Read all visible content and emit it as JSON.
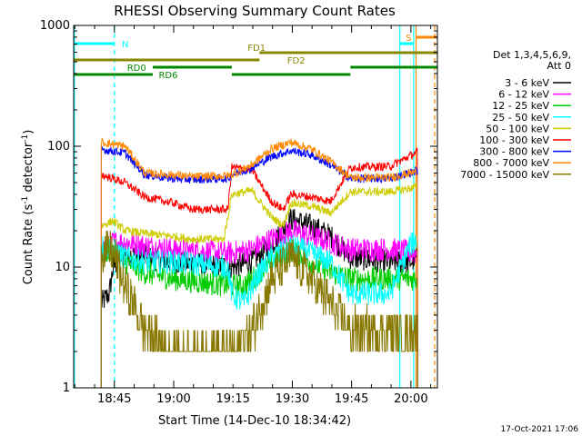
{
  "chart_data": {
    "type": "line",
    "title": "RHESSI Observing Summary Count Rates",
    "xlabel": "Start Time (14-Dec-10 18:34:42)",
    "ylabel": "Count Rate (s⁻¹ detector⁻¹)",
    "ylabel_main": "Count Rate (s",
    "ylabel_sup1": "-1",
    "ylabel_mid": " detector",
    "ylabel_sup2": "-1",
    "ylabel_end": ")",
    "yscale": "log",
    "ylim": [
      1,
      1000
    ],
    "xlim": [
      0,
      92
    ],
    "xticks": [
      {
        "t": 10.3,
        "label": "18:45"
      },
      {
        "t": 25.3,
        "label": "19:00"
      },
      {
        "t": 40.3,
        "label": "19:15"
      },
      {
        "t": 55.3,
        "label": "19:30"
      },
      {
        "t": 70.3,
        "label": "19:45"
      },
      {
        "t": 85.3,
        "label": "20:00"
      }
    ],
    "yticks": [
      {
        "v": 1,
        "label": "1"
      },
      {
        "v": 10,
        "label": "10"
      },
      {
        "v": 100,
        "label": "100"
      },
      {
        "v": 1000,
        "label": "1000"
      }
    ],
    "legend_header": [
      "Det 1,3,4,5,6,9,",
      "Att 0"
    ],
    "series": [
      {
        "name": "3 - 6 keV",
        "color": "#000000",
        "base": 11,
        "pts": [
          [
            7,
            5
          ],
          [
            9,
            6
          ],
          [
            10,
            10
          ],
          [
            13,
            13
          ],
          [
            18,
            12
          ],
          [
            25,
            11
          ],
          [
            40,
            10
          ],
          [
            45,
            11
          ],
          [
            50,
            15
          ],
          [
            55,
            25
          ],
          [
            60,
            22
          ],
          [
            65,
            18
          ],
          [
            70,
            12
          ],
          [
            80,
            11
          ],
          [
            85,
            11
          ],
          [
            87,
            12
          ]
        ]
      },
      {
        "name": "6 - 12 keV",
        "color": "#ff00ff",
        "base": 14,
        "pts": [
          [
            7,
            14
          ],
          [
            10,
            16
          ],
          [
            13,
            16
          ],
          [
            18,
            15
          ],
          [
            25,
            14
          ],
          [
            40,
            13
          ],
          [
            45,
            14
          ],
          [
            50,
            17
          ],
          [
            55,
            20
          ],
          [
            60,
            18
          ],
          [
            65,
            16
          ],
          [
            70,
            14
          ],
          [
            80,
            14
          ],
          [
            87,
            13
          ]
        ]
      },
      {
        "name": "12 - 25 keV",
        "color": "#00cc00",
        "base": 10,
        "pts": [
          [
            7,
            13
          ],
          [
            10,
            14
          ],
          [
            13,
            11
          ],
          [
            18,
            9
          ],
          [
            25,
            8
          ],
          [
            40,
            7
          ],
          [
            43,
            7
          ],
          [
            47,
            9
          ],
          [
            50,
            11
          ],
          [
            55,
            14
          ],
          [
            60,
            11
          ],
          [
            65,
            9
          ],
          [
            70,
            8
          ],
          [
            80,
            8
          ],
          [
            87,
            8
          ]
        ]
      },
      {
        "name": "25 - 50 keV",
        "color": "#00ffff",
        "base": 12,
        "pts": [
          [
            7,
            15
          ],
          [
            10,
            14
          ],
          [
            13,
            12
          ],
          [
            18,
            11
          ],
          [
            25,
            11
          ],
          [
            39,
            10
          ],
          [
            40,
            6
          ],
          [
            43,
            5
          ],
          [
            47,
            9
          ],
          [
            50,
            12
          ],
          [
            55,
            15
          ],
          [
            60,
            13
          ],
          [
            65,
            11
          ],
          [
            70,
            6
          ],
          [
            80,
            6
          ],
          [
            85,
            15
          ],
          [
            87,
            17
          ]
        ]
      },
      {
        "name": "50 - 100 keV",
        "color": "#cccc00",
        "base": 45,
        "pts": [
          [
            7,
            22
          ],
          [
            10,
            24
          ],
          [
            13,
            20
          ],
          [
            18,
            19
          ],
          [
            25,
            18
          ],
          [
            30,
            17
          ],
          [
            38,
            17
          ],
          [
            40,
            40
          ],
          [
            45,
            43
          ],
          [
            50,
            26
          ],
          [
            53,
            22
          ],
          [
            55,
            34
          ],
          [
            60,
            32
          ],
          [
            65,
            28
          ],
          [
            70,
            42
          ],
          [
            80,
            42
          ],
          [
            87,
            46
          ]
        ]
      },
      {
        "name": "100 - 300 keV",
        "color": "#ff0000",
        "base": 55,
        "pts": [
          [
            7,
            58
          ],
          [
            13,
            50
          ],
          [
            18,
            38
          ],
          [
            25,
            34
          ],
          [
            30,
            30
          ],
          [
            39,
            30
          ],
          [
            40,
            67
          ],
          [
            45,
            64
          ],
          [
            50,
            35
          ],
          [
            53,
            30
          ],
          [
            55,
            40
          ],
          [
            60,
            38
          ],
          [
            65,
            35
          ],
          [
            70,
            67
          ],
          [
            80,
            68
          ],
          [
            87,
            90
          ]
        ]
      },
      {
        "name": "300 - 800 keV",
        "color": "#0000ff",
        "base": 60,
        "pts": [
          [
            7,
            94
          ],
          [
            13,
            88
          ],
          [
            18,
            58
          ],
          [
            25,
            54
          ],
          [
            30,
            53
          ],
          [
            39,
            54
          ],
          [
            40,
            58
          ],
          [
            45,
            66
          ],
          [
            50,
            82
          ],
          [
            55,
            92
          ],
          [
            60,
            85
          ],
          [
            65,
            70
          ],
          [
            70,
            54
          ],
          [
            80,
            54
          ],
          [
            87,
            63
          ]
        ]
      },
      {
        "name": "800 - 7000 keV",
        "color": "#ff8800",
        "base": 50,
        "pts": [
          [
            7,
            108
          ],
          [
            13,
            100
          ],
          [
            18,
            60
          ],
          [
            25,
            58
          ],
          [
            30,
            56
          ],
          [
            39,
            57
          ],
          [
            40,
            58
          ],
          [
            45,
            70
          ],
          [
            50,
            95
          ],
          [
            55,
            108
          ],
          [
            60,
            95
          ],
          [
            65,
            75
          ],
          [
            70,
            55
          ],
          [
            80,
            55
          ],
          [
            87,
            62
          ]
        ]
      },
      {
        "name": "7000 - 15000 keV",
        "color": "#887700",
        "base": 3,
        "pts": [
          [
            7,
            14
          ],
          [
            10,
            13
          ],
          [
            13,
            7
          ],
          [
            18,
            3
          ],
          [
            25,
            2
          ],
          [
            40,
            2
          ],
          [
            45,
            3
          ],
          [
            50,
            8
          ],
          [
            55,
            12
          ],
          [
            60,
            8
          ],
          [
            65,
            5
          ],
          [
            70,
            3
          ],
          [
            80,
            3
          ],
          [
            87,
            3
          ]
        ]
      }
    ],
    "bars": [
      {
        "label": "N",
        "color": "#00ffff",
        "y": 48,
        "segments": [
          [
            0,
            10.3
          ],
          [
            82.5,
            86
          ]
        ],
        "label_t": 12.2
      },
      {
        "label": "S",
        "color": "#ff8800",
        "y": 41,
        "segments": [
          [
            86.5,
            92
          ]
        ],
        "label_t": 84
      },
      {
        "label": "FD1",
        "color": "#888800",
        "y": 58,
        "segments": [
          [
            47,
            92
          ]
        ],
        "label_t": 44
      },
      {
        "label": "FD2",
        "color": "#888800",
        "y": 66,
        "segments": [
          [
            0,
            47
          ]
        ],
        "label_t": 54
      },
      {
        "label": "RD0",
        "color": "#008800",
        "y": 74,
        "segments": [
          [
            20,
            40
          ],
          [
            70,
            92
          ]
        ],
        "label_t": 13.5
      },
      {
        "label": "RD6",
        "color": "#008800",
        "y": 82,
        "segments": [
          [
            0,
            20
          ],
          [
            40,
            70
          ]
        ],
        "label_t": 21.5
      }
    ],
    "vlines": [
      {
        "t": 0.2,
        "color": "#00ffff",
        "dash": false
      },
      {
        "t": 10.3,
        "color": "#00ffff",
        "dash": true
      },
      {
        "t": 82.5,
        "color": "#00ffff",
        "dash": false
      },
      {
        "t": 86,
        "color": "#00ffff",
        "dash": false
      },
      {
        "t": 86.6,
        "color": "#ff8800",
        "dash": false
      },
      {
        "t": 91.3,
        "color": "#ff8800",
        "dash": true
      }
    ],
    "footer": "17-Oct-2021 17:06"
  }
}
